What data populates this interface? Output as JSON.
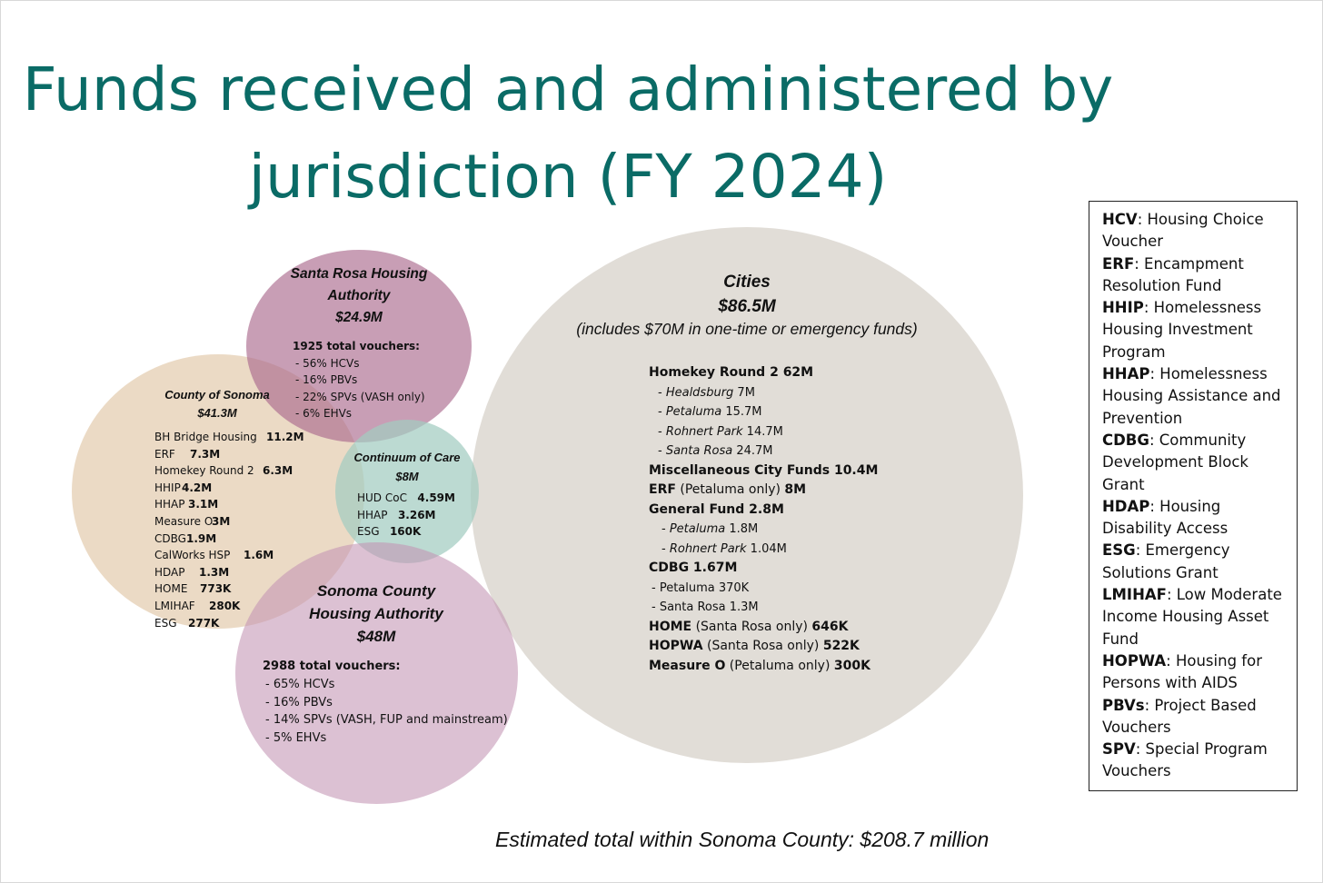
{
  "title": {
    "line1": "Funds received and administered by",
    "line2": "jurisdiction (FY 2024)"
  },
  "cities": {
    "name": "Cities",
    "amount": "$86.5M",
    "note": "(includes $70M in one-time or emergency funds)",
    "items": [
      {
        "text": "Homekey Round 2   62M",
        "style": "bold"
      },
      {
        "pre": "- ",
        "place": "Healdsburg",
        "value": " 7M",
        "style": "sub1"
      },
      {
        "pre": "- ",
        "place": "Petaluma",
        "value": " 15.7M",
        "style": "sub1"
      },
      {
        "pre": "- ",
        "place": "Rohnert Park",
        "value": " 14.7M",
        "style": "sub1"
      },
      {
        "pre": "- ",
        "place": "Santa Rosa",
        "value": " 24.7M",
        "style": "sub1"
      },
      {
        "text": "Miscellaneous City Funds 10.4M",
        "style": "bold"
      },
      {
        "lead": "ERF",
        "mid": " (Petaluma only) ",
        "tail": " 8M",
        "style": "mixed"
      },
      {
        "text": "General Fund  2.8M",
        "style": "bold"
      },
      {
        "pre": "- ",
        "place": "Petaluma",
        "value": " 1.8M",
        "style": "sub2"
      },
      {
        "pre": "- ",
        "place": "Rohnert Park",
        "value": " 1.04M",
        "style": "sub2"
      },
      {
        "text": "CDBG 1.67M",
        "style": "bold"
      },
      {
        "text": "- Petaluma 370K",
        "style": "plain"
      },
      {
        "text": "- Santa Rosa 1.3M",
        "style": "plain"
      },
      {
        "lead": "HOME",
        "mid": " (Santa Rosa only) ",
        "tail": "646K",
        "style": "mixed"
      },
      {
        "lead": "HOPWA",
        "mid": " (Santa Rosa only) ",
        "tail": "522K",
        "style": "mixed"
      },
      {
        "lead": "Measure O",
        "mid": " (Petaluma only) ",
        "tail": "300K",
        "style": "mixed"
      }
    ]
  },
  "santa_rosa_housing_authority": {
    "name_line1": "Santa Rosa Housing",
    "name_line2": "Authority",
    "amount": "$24.9M",
    "vouchers": "1925 total vouchers:",
    "items": [
      "- 56% HCVs",
      "- 16% PBVs",
      "- 22% SPVs (VASH only)",
      "- 6% EHVs"
    ]
  },
  "county_of_sonoma": {
    "name": "County of Sonoma",
    "amount": "$41.3M",
    "items": [
      {
        "label": "BH Bridge Housing",
        "value": "11.2M"
      },
      {
        "label": "ERF",
        "value": "7.3M"
      },
      {
        "label": "Homekey Round 2",
        "value": "6.3M"
      },
      {
        "label": "HHIP",
        "value": "4.2M"
      },
      {
        "label": "HHAP",
        "value": "3.1M"
      },
      {
        "label": "Measure O",
        "value": "3M"
      },
      {
        "label": "CDBG",
        "value": "1.9M"
      },
      {
        "label": "CalWorks HSP",
        "value": "1.6M"
      },
      {
        "label": "HDAP",
        "value": "1.3M"
      },
      {
        "label": "HOME",
        "value": "773K"
      },
      {
        "label": "LMIHAF",
        "value": "280K"
      },
      {
        "label": "ESG",
        "value": "277K"
      }
    ]
  },
  "continuum_of_care": {
    "name": "Continuum of Care",
    "amount": "$8M",
    "items": [
      {
        "label": "HUD CoC",
        "value": "4.59M"
      },
      {
        "label": "HHAP",
        "value": "3.26M"
      },
      {
        "label": "ESG",
        "value": "160K"
      }
    ]
  },
  "sonoma_county_housing_authority": {
    "name_line1": "Sonoma County",
    "name_line2": "Housing Authority",
    "amount": "$48M",
    "vouchers": "2988 total vouchers:",
    "items": [
      "- 65% HCVs",
      "- 16% PBVs",
      "- 14% SPVs (VASH, FUP and mainstream)",
      "- 5% EHVs"
    ]
  },
  "legend": [
    {
      "abbr": "HCV",
      "lines": [
        ": Housing Choice",
        "Voucher"
      ]
    },
    {
      "abbr": "ERF",
      "lines": [
        ": Encampment",
        "Resolution Fund"
      ]
    },
    {
      "abbr": "HHIP",
      "lines": [
        ": Homelessness",
        "Housing Investment",
        "Program"
      ]
    },
    {
      "abbr": "HHAP",
      "lines": [
        ": Homelessness",
        "Housing Assistance and",
        "Prevention"
      ]
    },
    {
      "abbr": "CDBG",
      "lines": [
        ": Community",
        "Development Block",
        "Grant"
      ]
    },
    {
      "abbr": "HDAP",
      "lines": [
        ": Housing",
        "Disability Access"
      ]
    },
    {
      "abbr": "ESG",
      "lines": [
        ": Emergency",
        "Solutions Grant"
      ]
    },
    {
      "abbr": "LMIHAF",
      "lines": [
        ": Low Moderate",
        "Income Housing Asset",
        "Fund"
      ]
    },
    {
      "abbr": "HOPWA",
      "lines": [
        ": Housing for",
        "Persons with AIDS"
      ]
    },
    {
      "abbr": "PBVs",
      "lines": [
        ": Project Based",
        "Vouchers"
      ]
    },
    {
      "abbr": "SPV",
      "lines": [
        ": Special Program",
        "Vouchers"
      ]
    }
  ],
  "footer": "Estimated total within Sonoma County: $208.7 million"
}
